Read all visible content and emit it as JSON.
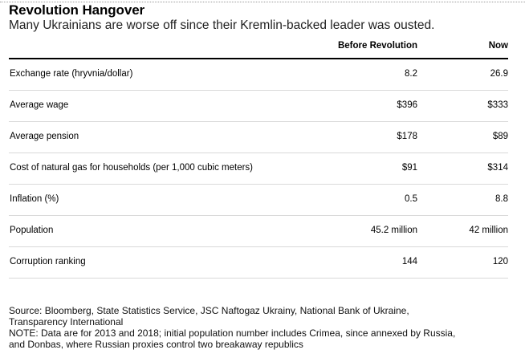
{
  "title": "Revolution Hangover",
  "subtitle": "Many Ukrainians are worse off since their Kremlin-backed leader was ousted.",
  "chart_data": {
    "type": "table",
    "columns": [
      "",
      "Before Revolution",
      "Now"
    ],
    "rows": [
      {
        "label": "Exchange rate (hryvnia/dollar)",
        "before": "8.2",
        "now": "26.9"
      },
      {
        "label": "Average wage",
        "before": "$396",
        "now": "$333"
      },
      {
        "label": "Average pension",
        "before": "$178",
        "now": "$89"
      },
      {
        "label": "Cost of natural gas for households (per 1,000 cubic meters)",
        "before": "$91",
        "now": "$314"
      },
      {
        "label": "Inflation (%)",
        "before": "0.5",
        "now": "8.8"
      },
      {
        "label": "Population",
        "before": "45.2 million",
        "now": "42 million"
      },
      {
        "label": "Corruption ranking",
        "before": "144",
        "now": "120"
      }
    ]
  },
  "footer": {
    "source_line_1": "Source: Bloomberg, State Statistics Service, JSC Naftogaz Ukrainy, National Bank of Ukraine,",
    "source_line_2": "Transparency International",
    "note_line_1": "NOTE: Data are for 2013 and 2018; initial population number includes Crimea, since annexed by Russia,",
    "note_line_2": "and Donbas, where Russian proxies control two breakaway republics"
  }
}
